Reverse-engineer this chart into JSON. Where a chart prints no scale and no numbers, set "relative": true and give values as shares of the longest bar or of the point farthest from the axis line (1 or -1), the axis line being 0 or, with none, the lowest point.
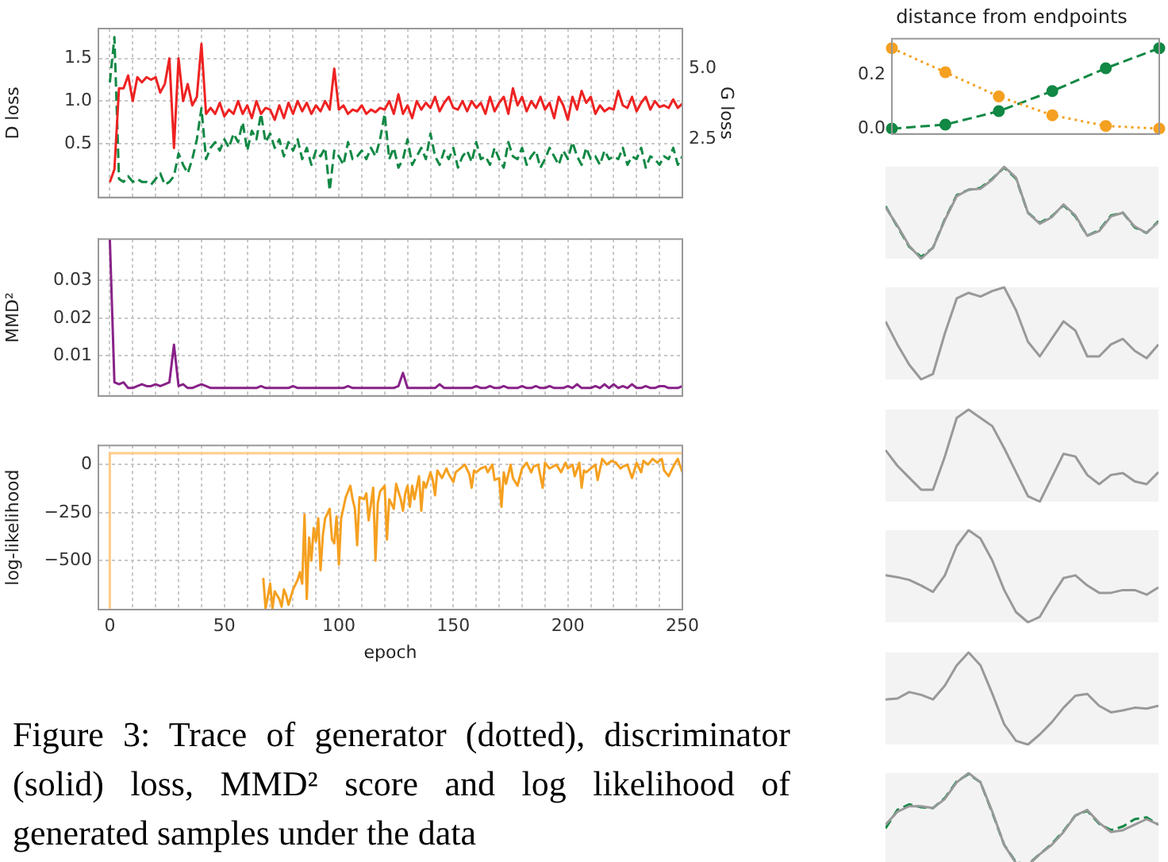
{
  "chart_data": [
    {
      "type": "line",
      "ylabel": "D loss",
      "y2label": "G loss",
      "x": [
        0,
        2,
        4,
        6,
        8,
        10,
        12,
        14,
        16,
        18,
        20,
        22,
        24,
        26,
        28,
        30,
        32,
        34,
        36,
        38,
        40,
        42,
        44,
        46,
        48,
        50,
        52,
        54,
        56,
        58,
        60,
        62,
        64,
        66,
        68,
        70,
        72,
        74,
        76,
        78,
        80,
        82,
        84,
        86,
        88,
        90,
        92,
        94,
        96,
        98,
        100,
        102,
        104,
        106,
        108,
        110,
        112,
        114,
        116,
        118,
        120,
        122,
        124,
        126,
        128,
        130,
        132,
        134,
        136,
        138,
        140,
        142,
        144,
        146,
        148,
        150,
        152,
        154,
        156,
        158,
        160,
        162,
        164,
        166,
        168,
        170,
        172,
        174,
        176,
        178,
        180,
        182,
        184,
        186,
        188,
        190,
        192,
        194,
        196,
        198,
        200,
        202,
        204,
        206,
        208,
        210,
        212,
        214,
        216,
        218,
        220,
        222,
        224,
        226,
        228,
        230,
        232,
        234,
        236,
        238,
        240,
        242,
        244,
        246,
        248,
        250
      ],
      "series": [
        {
          "color": "#ee2222",
          "line_style": "solid",
          "values": [
            0.05,
            0.2,
            1.15,
            1.15,
            1.3,
            1.0,
            1.28,
            1.22,
            1.28,
            1.25,
            1.28,
            1.1,
            1.2,
            1.5,
            0.45,
            1.5,
            1.0,
            1.2,
            0.95,
            1.05,
            1.67,
            0.85,
            0.92,
            0.85,
            0.98,
            0.82,
            0.9,
            0.85,
            1.0,
            0.85,
            0.95,
            0.8,
            1.0,
            0.85,
            0.92,
            0.9,
            0.78,
            0.95,
            0.8,
            0.98,
            0.85,
            1.0,
            0.88,
            0.98,
            0.85,
            0.95,
            0.88,
            1.0,
            0.9,
            1.38,
            0.9,
            0.95,
            0.85,
            0.9,
            0.88,
            0.95,
            0.85,
            0.9,
            0.87,
            0.92,
            0.9,
            1.0,
            0.85,
            1.08,
            0.85,
            0.95,
            0.8,
            1.0,
            0.9,
            0.98,
            0.92,
            1.05,
            0.88,
            0.98,
            1.05,
            0.92,
            0.9,
            1.0,
            0.88,
            1.0,
            0.92,
            0.98,
            0.85,
            1.05,
            0.88,
            0.98,
            1.05,
            0.85,
            1.15,
            0.95,
            1.05,
            0.88,
            1.0,
            0.92,
            1.05,
            0.9,
            0.98,
            0.8,
            1.05,
            0.95,
            0.78,
            1.05,
            0.9,
            1.12,
            0.98,
            1.05,
            0.85,
            0.95,
            0.88,
            0.92,
            0.9,
            1.12,
            0.95,
            0.92,
            1.05,
            0.88,
            0.98,
            1.05,
            0.9,
            1.0,
            0.93,
            0.95,
            0.92,
            1.02,
            0.92,
            0.97
          ]
        },
        {
          "color": "#118844",
          "line_style": "dashed",
          "axis": "y2",
          "values": [
            4.5,
            6.1,
            1.1,
            1.0,
            1.2,
            1.0,
            1.1,
            1.0,
            1.0,
            0.9,
            1.1,
            1.3,
            0.9,
            1.0,
            1.2,
            2.0,
            1.6,
            1.3,
            1.8,
            2.5,
            3.6,
            1.8,
            2.2,
            2.4,
            2.1,
            2.5,
            2.2,
            2.7,
            2.4,
            3.1,
            2.1,
            2.8,
            2.5,
            3.4,
            2.4,
            2.7,
            2.2,
            2.5,
            1.9,
            2.4,
            2.1,
            2.5,
            1.8,
            2.2,
            1.6,
            2.1,
            1.9,
            2.2,
            0.7,
            2.1,
            1.9,
            1.6,
            2.4,
            1.8,
            1.9,
            2.1,
            1.8,
            2.2,
            1.9,
            2.5,
            3.4,
            1.8,
            2.2,
            1.5,
            1.8,
            2.5,
            1.6,
            1.9,
            2.2,
            1.8,
            2.7,
            1.9,
            1.6,
            2.1,
            1.8,
            2.2,
            1.5,
            1.9,
            2.1,
            1.7,
            2.4,
            1.8,
            1.9,
            1.6,
            2.2,
            1.8,
            1.5,
            2.4,
            1.9,
            1.8,
            2.2,
            1.6,
            1.9,
            2.1,
            1.5,
            1.8,
            2.2,
            1.9,
            1.6,
            2.1,
            1.8,
            2.4,
            1.9,
            1.6,
            2.2,
            1.8,
            1.9,
            1.6,
            2.1,
            1.8,
            1.9,
            1.8,
            2.2,
            1.6,
            1.9,
            1.8,
            2.2,
            1.5,
            1.9,
            1.8,
            1.6,
            1.9,
            1.8,
            2.2,
            1.6,
            1.9
          ]
        }
      ],
      "xlim": [
        -5,
        250
      ],
      "xticks": [
        0,
        {
          "value": 10,
          "label": null
        },
        {
          "value": 20,
          "label": null
        },
        {
          "value": 30,
          "label": null
        },
        {
          "value": 40,
          "label": null
        },
        50,
        {
          "value": 60,
          "label": null
        },
        {
          "value": 70,
          "label": null
        },
        {
          "value": 80,
          "label": null
        },
        {
          "value": 90,
          "label": null
        },
        100,
        {
          "value": 110,
          "label": null
        },
        {
          "value": 120,
          "label": null
        },
        {
          "value": 130,
          "label": null
        },
        {
          "value": 140,
          "label": null
        },
        150,
        {
          "value": 160,
          "label": null
        },
        {
          "value": 170,
          "label": null
        },
        {
          "value": 180,
          "label": null
        },
        {
          "value": 190,
          "label": null
        },
        200,
        {
          "value": 210,
          "label": null
        },
        {
          "value": 220,
          "label": null
        },
        {
          "value": 230,
          "label": null
        },
        {
          "value": 240,
          "label": null
        },
        250
      ],
      "ylim": [
        -0.13,
        1.85
      ],
      "yticks": [
        0.5,
        {
          "value": 1,
          "label": "1.0"
        },
        1.5
      ],
      "y2lim": [
        0.45,
        6.4
      ],
      "y2ticks": [
        2.5,
        {
          "value": 5,
          "label": "5.0"
        }
      ],
      "grid": true,
      "tick_labels": "y"
    },
    {
      "type": "line",
      "ylabel": "MMD²",
      "x": [
        0,
        2,
        4,
        6,
        8,
        10,
        12,
        14,
        16,
        18,
        20,
        22,
        24,
        26,
        28,
        30,
        32,
        34,
        36,
        38,
        40,
        42,
        44,
        46,
        48,
        50,
        52,
        54,
        56,
        58,
        60,
        62,
        64,
        66,
        68,
        70,
        72,
        74,
        76,
        78,
        80,
        82,
        84,
        86,
        88,
        90,
        92,
        94,
        96,
        98,
        100,
        102,
        104,
        106,
        108,
        110,
        112,
        114,
        116,
        118,
        120,
        122,
        124,
        126,
        128,
        130,
        132,
        134,
        136,
        138,
        140,
        142,
        144,
        146,
        148,
        150,
        152,
        154,
        156,
        158,
        160,
        162,
        164,
        166,
        168,
        170,
        172,
        174,
        176,
        178,
        180,
        182,
        184,
        186,
        188,
        190,
        192,
        194,
        196,
        198,
        200,
        202,
        204,
        206,
        208,
        210,
        212,
        214,
        216,
        218,
        220,
        222,
        224,
        226,
        228,
        230,
        232,
        234,
        236,
        238,
        240,
        242,
        244,
        246,
        248,
        250
      ],
      "series": [
        {
          "color": "#882288",
          "values": [
            0.041,
            0.003,
            0.0025,
            0.003,
            0.0015,
            0.0015,
            0.002,
            0.0025,
            0.002,
            0.002,
            0.0025,
            0.002,
            0.0025,
            0.003,
            0.013,
            0.002,
            0.0025,
            0.0015,
            0.0015,
            0.002,
            0.0025,
            0.002,
            0.0015,
            0.0015,
            0.0015,
            0.0015,
            0.0015,
            0.0015,
            0.0015,
            0.0015,
            0.0015,
            0.0015,
            0.0015,
            0.002,
            0.0015,
            0.0015,
            0.0015,
            0.0015,
            0.0015,
            0.0015,
            0.002,
            0.0015,
            0.0015,
            0.0015,
            0.0015,
            0.0015,
            0.0015,
            0.0015,
            0.0015,
            0.0015,
            0.0015,
            0.0015,
            0.002,
            0.0015,
            0.0015,
            0.0015,
            0.0015,
            0.0015,
            0.0015,
            0.0015,
            0.0015,
            0.0015,
            0.0015,
            0.002,
            0.0055,
            0.0015,
            0.0015,
            0.0015,
            0.0015,
            0.0015,
            0.0015,
            0.0015,
            0.0025,
            0.0015,
            0.0015,
            0.0015,
            0.0015,
            0.0015,
            0.0015,
            0.0015,
            0.002,
            0.0015,
            0.0015,
            0.002,
            0.0015,
            0.0015,
            0.002,
            0.0015,
            0.0015,
            0.0015,
            0.002,
            0.0015,
            0.0015,
            0.002,
            0.0015,
            0.0015,
            0.002,
            0.0015,
            0.0015,
            0.0015,
            0.002,
            0.0015,
            0.0025,
            0.0015,
            0.0015,
            0.0015,
            0.002,
            0.0015,
            0.0025,
            0.0015,
            0.0025,
            0.0015,
            0.002,
            0.0015,
            0.0025,
            0.0015,
            0.0015,
            0.002,
            0.0015,
            0.0015,
            0.002,
            0.002,
            0.0015,
            0.0015,
            0.0015,
            0.002
          ]
        }
      ],
      "xlim": [
        -5,
        250
      ],
      "xticks": [
        0,
        {
          "value": 10,
          "label": null
        },
        {
          "value": 20,
          "label": null
        },
        {
          "value": 30,
          "label": null
        },
        {
          "value": 40,
          "label": null
        },
        50,
        {
          "value": 60,
          "label": null
        },
        {
          "value": 70,
          "label": null
        },
        {
          "value": 80,
          "label": null
        },
        {
          "value": 90,
          "label": null
        },
        100,
        {
          "value": 110,
          "label": null
        },
        {
          "value": 120,
          "label": null
        },
        {
          "value": 130,
          "label": null
        },
        {
          "value": 140,
          "label": null
        },
        150,
        {
          "value": 160,
          "label": null
        },
        {
          "value": 170,
          "label": null
        },
        {
          "value": 180,
          "label": null
        },
        {
          "value": 190,
          "label": null
        },
        200,
        {
          "value": 210,
          "label": null
        },
        {
          "value": 220,
          "label": null
        },
        {
          "value": 230,
          "label": null
        },
        {
          "value": 240,
          "label": null
        },
        250
      ],
      "ylim": [
        -0.0006,
        0.041
      ],
      "yticks": [
        0.01,
        0.02,
        0.03
      ],
      "grid": true,
      "tick_labels": "y"
    },
    {
      "type": "line",
      "xlabel": "epoch",
      "ylabel": "log-likelihood",
      "series": [
        {
          "color": "#ffcc88",
          "x": [
            0,
            0,
            250
          ],
          "values": [
            -750,
            60,
            60
          ]
        },
        {
          "color": "#f5a020",
          "x": [
            67,
            68,
            70,
            71,
            72,
            74,
            75,
            76,
            77,
            78,
            80,
            82,
            83,
            84,
            85,
            86,
            87,
            88,
            89,
            90,
            91,
            92,
            93,
            94,
            96,
            97,
            98,
            99,
            100,
            101,
            103,
            105,
            106,
            107,
            108,
            109,
            111,
            112,
            113,
            115,
            116,
            117,
            118,
            120,
            121,
            122,
            124,
            125,
            127,
            128,
            129,
            130,
            131,
            132,
            133,
            135,
            136,
            137,
            138,
            140,
            141,
            142,
            143,
            145,
            147,
            148,
            150,
            151,
            152,
            154,
            155,
            157,
            158,
            159,
            160,
            162,
            164,
            165,
            167,
            168,
            170,
            171,
            172,
            173,
            175,
            176,
            178,
            180,
            182,
            184,
            185,
            187,
            189,
            190,
            192,
            195,
            197,
            199,
            200,
            202,
            203,
            205,
            206,
            207,
            208,
            210,
            212,
            213,
            215,
            217,
            219,
            221,
            223,
            224,
            226,
            228,
            230,
            232,
            233,
            235,
            237,
            239,
            241,
            242,
            244,
            246,
            248,
            250
          ],
          "values": [
            -590,
            -750,
            -620,
            -750,
            -660,
            -700,
            -740,
            -650,
            -680,
            -730,
            -650,
            -600,
            -560,
            -620,
            -260,
            -700,
            -380,
            -500,
            -330,
            -400,
            -280,
            -550,
            -370,
            -280,
            -230,
            -390,
            -410,
            -270,
            -520,
            -280,
            -170,
            -110,
            -180,
            -230,
            -420,
            -170,
            -180,
            -150,
            -290,
            -120,
            -500,
            -200,
            -140,
            -110,
            -390,
            -180,
            -230,
            -100,
            -180,
            -240,
            -150,
            -110,
            -220,
            -110,
            -180,
            -60,
            -240,
            -90,
            -120,
            -40,
            -80,
            -160,
            -30,
            -70,
            -20,
            -50,
            -90,
            -40,
            -30,
            -10,
            0,
            -50,
            -120,
            -30,
            -40,
            -20,
            -10,
            -40,
            0,
            -80,
            -70,
            -220,
            -40,
            -100,
            0,
            -70,
            -110,
            -20,
            10,
            -40,
            -10,
            0,
            -120,
            10,
            -20,
            0,
            -40,
            10,
            -20,
            0,
            -60,
            10,
            -120,
            -30,
            -40,
            -20,
            0,
            -80,
            30,
            0,
            20,
            10,
            -20,
            -10,
            0,
            -70,
            10,
            -40,
            20,
            0,
            30,
            10,
            30,
            -30,
            -60,
            -10,
            30,
            -40
          ]
        }
      ],
      "xlim": [
        -5,
        250
      ],
      "xticks": [
        0,
        {
          "value": 10,
          "label": null
        },
        {
          "value": 20,
          "label": null
        },
        {
          "value": 30,
          "label": null
        },
        {
          "value": 40,
          "label": null
        },
        50,
        {
          "value": 60,
          "label": null
        },
        {
          "value": 70,
          "label": null
        },
        {
          "value": 80,
          "label": null
        },
        {
          "value": 90,
          "label": null
        },
        100,
        {
          "value": 110,
          "label": null
        },
        {
          "value": 120,
          "label": null
        },
        {
          "value": 130,
          "label": null
        },
        {
          "value": 140,
          "label": null
        },
        150,
        {
          "value": 160,
          "label": null
        },
        {
          "value": 170,
          "label": null
        },
        {
          "value": 180,
          "label": null
        },
        {
          "value": 190,
          "label": null
        },
        200,
        {
          "value": 210,
          "label": null
        },
        {
          "value": 220,
          "label": null
        },
        {
          "value": 230,
          "label": null
        },
        {
          "value": 240,
          "label": null
        },
        250
      ],
      "ylim": [
        -755,
        100
      ],
      "yticks": [
        {
          "value": -500,
          "label": "−500"
        },
        {
          "value": -250,
          "label": "−250"
        },
        0
      ],
      "grid": true,
      "annotations": [
        "Figure 3: Trace of generator (dotted), discriminator (solid) loss, MMD² score and log likelihood of generated samples under the data"
      ]
    },
    {
      "type": "line",
      "title": "distance from endpoints",
      "categories": [
        null,
        null,
        null,
        null,
        null,
        null
      ],
      "series": [
        {
          "color": "#f5a020",
          "line_style": "dotted",
          "values": [
            0.3,
            0.21,
            0.12,
            0.05,
            0.01,
            0.0
          ]
        },
        {
          "color": "#118844",
          "line_style": "dashed",
          "values": [
            0.0,
            0.015,
            0.065,
            0.14,
            0.225,
            0.3
          ]
        }
      ],
      "ylim": [
        -0.02,
        0.335
      ],
      "yticks": [
        {
          "value": 0,
          "label": "0.0"
        },
        0.2
      ],
      "marker": "circle",
      "tick_labels": "y"
    },
    {
      "type": "line",
      "relative": true,
      "tick_labels": false,
      "categories": [
        null,
        null,
        null,
        null,
        null,
        null,
        null,
        null,
        null,
        null,
        null,
        null,
        null,
        null,
        null,
        null,
        null,
        null,
        null,
        null,
        null,
        null,
        null,
        null
      ],
      "series": [
        {
          "color": "#999999",
          "values": [
            0.56,
            0.36,
            0.14,
            0.0,
            0.12,
            0.42,
            0.68,
            0.75,
            0.76,
            0.86,
            1.0,
            0.88,
            0.5,
            0.38,
            0.45,
            0.59,
            0.47,
            0.25,
            0.3,
            0.46,
            0.5,
            0.35,
            0.28,
            0.4
          ]
        },
        {
          "color": "#118844",
          "line_style": "dashed",
          "values": [
            0.57,
            0.35,
            0.13,
            0.02,
            0.12,
            0.43,
            0.69,
            0.75,
            0.77,
            0.87,
            0.99,
            0.87,
            0.5,
            0.39,
            0.46,
            0.58,
            0.46,
            0.25,
            0.31,
            0.47,
            0.5,
            0.34,
            0.28,
            0.41
          ]
        }
      ]
    },
    {
      "type": "line",
      "relative": true,
      "tick_labels": false,
      "categories": [
        null,
        null,
        null,
        null,
        null,
        null,
        null,
        null,
        null,
        null,
        null,
        null,
        null,
        null,
        null,
        null,
        null,
        null,
        null,
        null,
        null,
        null,
        null,
        null
      ],
      "series": [
        {
          "color": "#999999",
          "values": [
            0.63,
            0.38,
            0.16,
            0.0,
            0.06,
            0.5,
            0.88,
            0.94,
            0.9,
            0.96,
            1.0,
            0.75,
            0.41,
            0.25,
            0.44,
            0.63,
            0.53,
            0.25,
            0.25,
            0.38,
            0.44,
            0.31,
            0.23,
            0.38
          ]
        }
      ]
    },
    {
      "type": "line",
      "relative": true,
      "tick_labels": false,
      "categories": [
        null,
        null,
        null,
        null,
        null,
        null,
        null,
        null,
        null,
        null,
        null,
        null,
        null,
        null,
        null,
        null,
        null,
        null,
        null,
        null,
        null,
        null,
        null,
        null
      ],
      "series": [
        {
          "color": "#999999",
          "values": [
            0.56,
            0.39,
            0.26,
            0.13,
            0.13,
            0.49,
            0.91,
            1.0,
            0.91,
            0.82,
            0.58,
            0.32,
            0.06,
            0.0,
            0.26,
            0.52,
            0.49,
            0.29,
            0.19,
            0.29,
            0.31,
            0.22,
            0.19,
            0.32
          ]
        }
      ]
    },
    {
      "type": "line",
      "relative": true,
      "tick_labels": false,
      "categories": [
        null,
        null,
        null,
        null,
        null,
        null,
        null,
        null,
        null,
        null,
        null,
        null,
        null,
        null,
        null,
        null,
        null,
        null,
        null,
        null,
        null,
        null,
        null,
        null
      ],
      "series": [
        {
          "color": "#999999",
          "values": [
            0.51,
            0.49,
            0.46,
            0.4,
            0.33,
            0.51,
            0.83,
            1.0,
            0.91,
            0.67,
            0.35,
            0.11,
            0.0,
            0.06,
            0.28,
            0.48,
            0.51,
            0.4,
            0.32,
            0.32,
            0.35,
            0.35,
            0.3,
            0.38
          ]
        }
      ]
    },
    {
      "type": "line",
      "relative": true,
      "tick_labels": false,
      "categories": [
        null,
        null,
        null,
        null,
        null,
        null,
        null,
        null,
        null,
        null,
        null,
        null,
        null,
        null,
        null,
        null,
        null,
        null,
        null,
        null,
        null,
        null,
        null,
        null
      ],
      "series": [
        {
          "color": "#999999",
          "values": [
            0.49,
            0.5,
            0.57,
            0.54,
            0.49,
            0.64,
            0.86,
            1.0,
            0.86,
            0.55,
            0.22,
            0.04,
            0.0,
            0.11,
            0.24,
            0.4,
            0.53,
            0.55,
            0.42,
            0.35,
            0.37,
            0.4,
            0.39,
            0.42
          ]
        }
      ]
    },
    {
      "type": "line",
      "relative": true,
      "tick_labels": false,
      "categories": [
        null,
        null,
        null,
        null,
        null,
        null,
        null,
        null,
        null,
        null,
        null,
        null,
        null,
        null,
        null,
        null,
        null,
        null,
        null,
        null,
        null,
        null,
        null,
        null
      ],
      "series": [
        {
          "color": "#999999",
          "values": [
            0.44,
            0.58,
            0.64,
            0.64,
            0.62,
            0.72,
            0.9,
            1.0,
            0.9,
            0.58,
            0.22,
            0.02,
            0.0,
            0.12,
            0.22,
            0.36,
            0.54,
            0.6,
            0.46,
            0.36,
            0.38,
            0.44,
            0.5,
            0.44
          ]
        },
        {
          "color": "#118844",
          "line_style": "dashed",
          "values": [
            0.4,
            0.6,
            0.66,
            0.63,
            0.62,
            0.73,
            0.91,
            0.99,
            0.9,
            0.57,
            0.22,
            0.03,
            0.01,
            0.12,
            0.23,
            0.37,
            0.54,
            0.59,
            0.45,
            0.38,
            0.42,
            0.5,
            0.52,
            0.44
          ]
        }
      ]
    }
  ]
}
